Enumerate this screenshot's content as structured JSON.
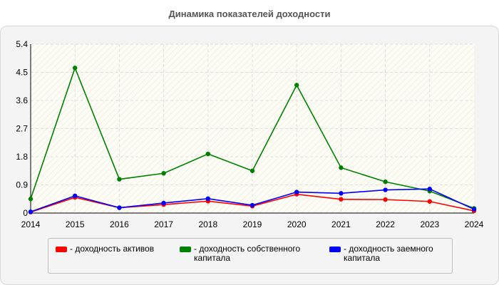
{
  "chart_data": {
    "type": "line",
    "title": "Динамика показателей доходности",
    "x": [
      "2014",
      "2015",
      "2016",
      "2017",
      "2018",
      "2019",
      "2020",
      "2021",
      "2022",
      "2023",
      "2024"
    ],
    "y_ticks": [
      "0",
      "0.9",
      "1.8",
      "2.7",
      "3.6",
      "4.5",
      "5.4"
    ],
    "ylim": [
      0,
      5.4
    ],
    "grid": true,
    "legend_position": "bottom",
    "series": [
      {
        "name": "- доходность активов",
        "color": "#ff0000",
        "values": [
          0.03,
          0.5,
          0.17,
          0.27,
          0.38,
          0.22,
          0.6,
          0.44,
          0.43,
          0.37,
          0.07
        ]
      },
      {
        "name": "- доходность собственного капитала",
        "color": "#008000",
        "values": [
          0.45,
          4.64,
          1.08,
          1.27,
          1.89,
          1.35,
          4.09,
          1.45,
          1.0,
          0.7,
          0.15
        ]
      },
      {
        "name": "- доходность заемного капитала",
        "color": "#0000ff",
        "values": [
          0.04,
          0.55,
          0.17,
          0.32,
          0.46,
          0.25,
          0.67,
          0.63,
          0.74,
          0.77,
          0.12
        ]
      }
    ]
  }
}
